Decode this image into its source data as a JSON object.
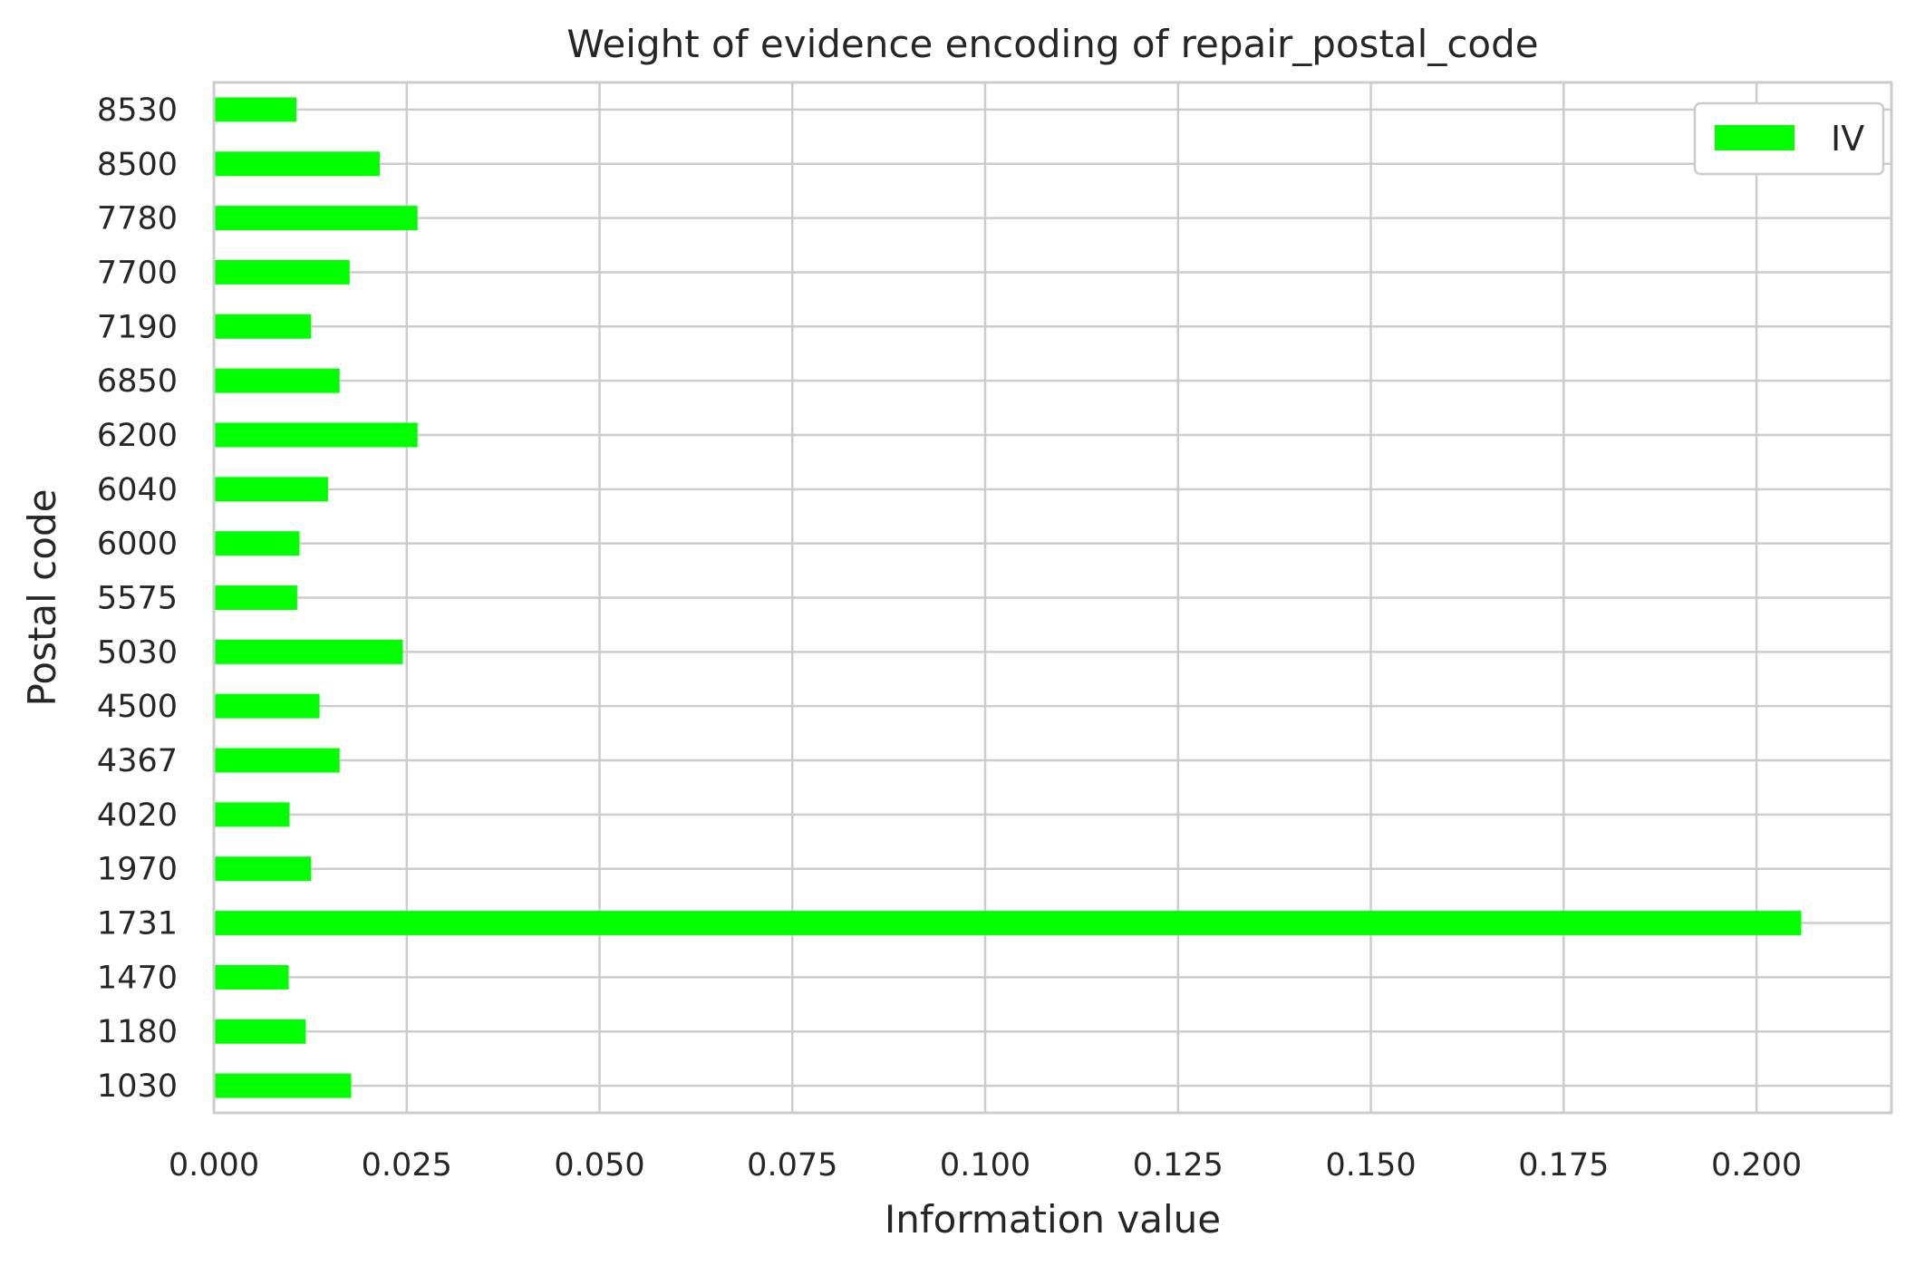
{
  "chart_data": {
    "type": "bar",
    "orientation": "horizontal",
    "title": "Weight of evidence encoding of repair_postal_code",
    "xlabel": "Information value",
    "ylabel": "Postal code",
    "xlim": [
      0,
      0.2175
    ],
    "xticks": [
      "0.000",
      "0.025",
      "0.050",
      "0.075",
      "0.100",
      "0.125",
      "0.150",
      "0.175",
      "0.200"
    ],
    "categories": [
      "1030",
      "1180",
      "1470",
      "1731",
      "1970",
      "4020",
      "4367",
      "4500",
      "5030",
      "5575",
      "6000",
      "6040",
      "6200",
      "6850",
      "7190",
      "7700",
      "7780",
      "8500",
      "8530"
    ],
    "series": [
      {
        "name": "IV",
        "color": "#00ff00",
        "values": [
          0.0178,
          0.0119,
          0.0097,
          0.2058,
          0.0126,
          0.0098,
          0.0163,
          0.0137,
          0.0245,
          0.0108,
          0.0111,
          0.0148,
          0.0264,
          0.0163,
          0.0126,
          0.0176,
          0.0264,
          0.0215,
          0.0107
        ]
      }
    ],
    "grid": true,
    "legend_position": "top-right",
    "colors": {
      "grid": "#cccccc",
      "text": "#262626",
      "background": "#ffffff"
    }
  }
}
